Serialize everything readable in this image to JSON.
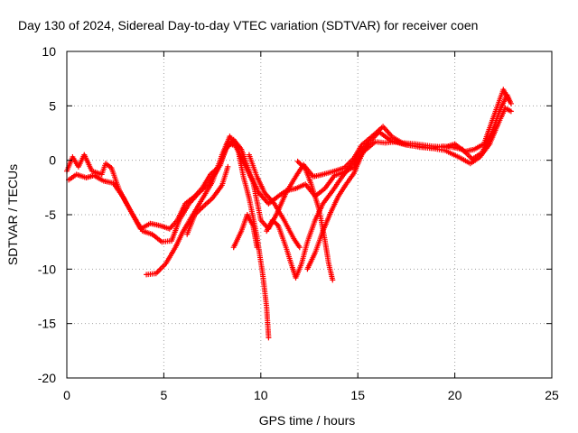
{
  "chart_data": {
    "type": "scatter",
    "title": "Day 130 of 2024, Sidereal Day-to-day VTEC variation (SDTVAR) for receiver coen",
    "xlabel": "GPS time / hours",
    "ylabel": "SDTVAR / TECUs",
    "xlim": [
      0,
      25
    ],
    "ylim": [
      -20,
      10
    ],
    "xticks": [
      0,
      5,
      10,
      15,
      20,
      25
    ],
    "yticks": [
      -20,
      -15,
      -10,
      -5,
      0,
      5,
      10
    ],
    "xtick_labels": [
      "0",
      "5",
      "10",
      "15",
      "20",
      "25"
    ],
    "ytick_labels": [
      "-20",
      "-15",
      "-10",
      "-5",
      "0",
      "5",
      "10"
    ],
    "grid": true,
    "marker": "+",
    "series": [
      {
        "name": "SDTVAR",
        "color": "#ff0000",
        "tracks": [
          [
            [
              0.0,
              -1.0
            ],
            [
              0.3,
              0.3
            ],
            [
              0.6,
              -0.6
            ],
            [
              0.9,
              0.5
            ],
            [
              1.3,
              -1.0
            ],
            [
              1.8,
              -1.3
            ],
            [
              2.0,
              -0.3
            ],
            [
              2.3,
              -0.7
            ],
            [
              2.7,
              -2.7
            ],
            [
              3.3,
              -4.7
            ],
            [
              3.8,
              -6.3
            ],
            [
              4.3,
              -5.8
            ],
            [
              4.8,
              -6.0
            ],
            [
              5.3,
              -6.3
            ],
            [
              5.7,
              -5.5
            ],
            [
              6.1,
              -4.0
            ],
            [
              6.6,
              -3.3
            ],
            [
              7.0,
              -2.5
            ],
            [
              7.4,
              -1.3
            ],
            [
              7.9,
              -0.5
            ],
            [
              8.3,
              1.6
            ],
            [
              8.7,
              1.3
            ],
            [
              9.2,
              -0.5
            ],
            [
              9.6,
              -2.0
            ],
            [
              10.0,
              -5.5
            ],
            [
              10.4,
              -6.3
            ],
            [
              10.8,
              -5.0
            ],
            [
              11.3,
              -3.0
            ],
            [
              11.8,
              -1.5
            ],
            [
              12.2,
              -0.4
            ],
            [
              12.7,
              -1.5
            ],
            [
              13.2,
              -1.3
            ],
            [
              13.8,
              -1.0
            ],
            [
              14.3,
              -0.7
            ],
            [
              14.8,
              0.2
            ],
            [
              15.2,
              1.4
            ],
            [
              15.8,
              2.3
            ],
            [
              16.3,
              3.1
            ],
            [
              16.8,
              2.1
            ],
            [
              17.3,
              1.6
            ],
            [
              18.0,
              1.5
            ],
            [
              18.8,
              1.3
            ],
            [
              19.5,
              1.2
            ],
            [
              20.0,
              1.5
            ],
            [
              20.5,
              0.8
            ],
            [
              21.0,
              1.0
            ],
            [
              21.5,
              1.5
            ],
            [
              22.0,
              4.0
            ],
            [
              22.5,
              6.5
            ],
            [
              22.8,
              5.5
            ]
          ],
          [
            [
              0.1,
              -1.8
            ],
            [
              0.5,
              -1.3
            ],
            [
              1.0,
              -1.6
            ],
            [
              1.4,
              -1.4
            ],
            [
              1.9,
              -1.9
            ],
            [
              2.4,
              -2.1
            ],
            [
              2.9,
              -3.4
            ],
            [
              3.4,
              -5.0
            ],
            [
              3.9,
              -6.5
            ],
            [
              4.4,
              -6.8
            ],
            [
              4.9,
              -7.5
            ],
            [
              5.4,
              -7.4
            ],
            [
              5.8,
              -5.5
            ],
            [
              6.3,
              -4.0
            ],
            [
              6.8,
              -3.0
            ],
            [
              7.3,
              -2.2
            ],
            [
              7.8,
              -0.8
            ],
            [
              8.2,
              1.0
            ],
            [
              8.6,
              1.9
            ],
            [
              9.0,
              1.0
            ],
            [
              9.5,
              -1.5
            ],
            [
              9.9,
              -3.0
            ],
            [
              10.4,
              -4.0
            ],
            [
              10.9,
              -3.3
            ],
            [
              11.3,
              -2.8
            ],
            [
              11.8,
              -2.6
            ],
            [
              12.3,
              -2.2
            ],
            [
              12.8,
              -3.3
            ],
            [
              13.3,
              -2.6
            ],
            [
              13.8,
              -1.4
            ],
            [
              14.3,
              -1.1
            ],
            [
              14.8,
              -0.6
            ],
            [
              15.3,
              0.8
            ],
            [
              15.9,
              1.7
            ],
            [
              16.4,
              1.6
            ],
            [
              17.0,
              1.7
            ],
            [
              17.6,
              1.4
            ],
            [
              18.2,
              1.2
            ],
            [
              18.8,
              1.1
            ],
            [
              19.4,
              1.3
            ],
            [
              19.9,
              1.2
            ],
            [
              20.4,
              1.0
            ],
            [
              20.9,
              0.1
            ],
            [
              21.4,
              0.7
            ],
            [
              21.9,
              2.5
            ],
            [
              22.3,
              4.5
            ],
            [
              22.7,
              6.0
            ],
            [
              22.9,
              5.2
            ]
          ],
          [
            [
              4.1,
              -10.5
            ],
            [
              4.6,
              -10.4
            ],
            [
              5.1,
              -9.5
            ],
            [
              5.6,
              -8.0
            ],
            [
              6.0,
              -6.5
            ],
            [
              6.5,
              -5.0
            ],
            [
              7.0,
              -3.5
            ],
            [
              7.5,
              -2.0
            ],
            [
              8.0,
              0.5
            ],
            [
              8.4,
              2.2
            ],
            [
              8.8,
              1.2
            ],
            [
              9.1,
              -1.5
            ],
            [
              9.4,
              -3.5
            ],
            [
              9.8,
              -7.0
            ],
            [
              10.1,
              -10.5
            ],
            [
              10.3,
              -13.5
            ],
            [
              10.4,
              -16.3
            ]
          ],
          [
            [
              8.6,
              -8.0
            ],
            [
              9.0,
              -6.5
            ],
            [
              9.3,
              -5.0
            ],
            [
              9.6,
              -6.0
            ],
            [
              9.8,
              -8.0
            ]
          ],
          [
            [
              10.3,
              -6.5
            ],
            [
              10.6,
              -5.5
            ],
            [
              10.9,
              -6.0
            ],
            [
              11.3,
              -8.0
            ],
            [
              11.6,
              -9.7
            ],
            [
              11.8,
              -10.8
            ],
            [
              12.1,
              -9.5
            ],
            [
              12.4,
              -7.5
            ],
            [
              12.8,
              -5.5
            ],
            [
              13.2,
              -4.0
            ],
            [
              13.7,
              -2.8
            ],
            [
              14.2,
              -1.5
            ],
            [
              14.6,
              -0.6
            ],
            [
              15.0,
              0.5
            ],
            [
              15.5,
              1.5
            ]
          ],
          [
            [
              11.9,
              -0.1
            ],
            [
              12.3,
              -0.8
            ],
            [
              12.6,
              -2.2
            ],
            [
              13.0,
              -4.5
            ],
            [
              13.3,
              -7.3
            ],
            [
              13.5,
              -9.5
            ],
            [
              13.7,
              -11.0
            ]
          ],
          [
            [
              12.4,
              -10.0
            ],
            [
              12.8,
              -8.5
            ],
            [
              13.2,
              -6.5
            ],
            [
              13.6,
              -4.8
            ],
            [
              14.0,
              -3.3
            ],
            [
              14.4,
              -2.2
            ],
            [
              14.8,
              -1.2
            ],
            [
              15.2,
              0.5
            ],
            [
              15.6,
              1.7
            ],
            [
              16.1,
              2.6
            ],
            [
              16.7,
              1.8
            ],
            [
              17.5,
              1.4
            ],
            [
              18.5,
              1.2
            ],
            [
              19.5,
              0.9
            ],
            [
              20.3,
              0.2
            ],
            [
              20.8,
              -0.3
            ],
            [
              21.3,
              0.3
            ],
            [
              21.8,
              1.5
            ],
            [
              22.2,
              3.2
            ],
            [
              22.6,
              4.8
            ],
            [
              22.9,
              4.5
            ]
          ],
          [
            [
              9.4,
              0.5
            ],
            [
              9.8,
              -1.5
            ],
            [
              10.2,
              -3.0
            ],
            [
              10.7,
              -4.0
            ],
            [
              11.2,
              -5.5
            ],
            [
              11.7,
              -7.2
            ],
            [
              12.0,
              -8.0
            ]
          ],
          [
            [
              6.2,
              -6.8
            ],
            [
              6.6,
              -5.0
            ],
            [
              7.0,
              -4.3
            ],
            [
              7.5,
              -3.5
            ],
            [
              8.0,
              -2.3
            ],
            [
              8.3,
              -0.6
            ]
          ]
        ]
      }
    ]
  }
}
